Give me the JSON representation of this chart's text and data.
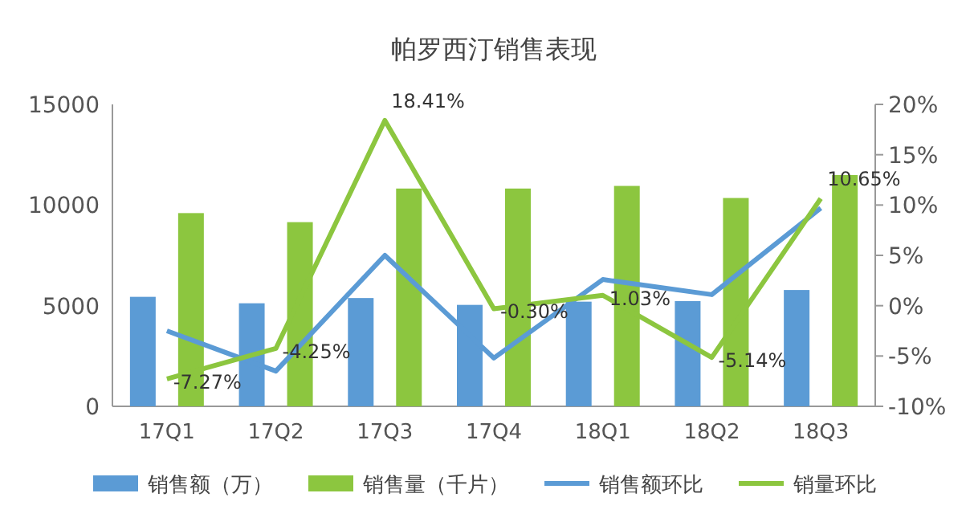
{
  "chart_data": {
    "type": "bar",
    "title": "帕罗西汀销售表现",
    "categories": [
      "17Q1",
      "17Q2",
      "17Q3",
      "17Q4",
      "18Q1",
      "18Q2",
      "18Q3"
    ],
    "series": [
      {
        "name": "销售额（万）",
        "color": "#5b9bd5",
        "values": [
          5440,
          5120,
          5380,
          5040,
          5200,
          5230,
          5780
        ]
      },
      {
        "name": "销售量（千片）",
        "color": "#8cc63f",
        "values": [
          9600,
          9150,
          10820,
          10820,
          10950,
          10350,
          11490
        ]
      },
      {
        "name": "销售额环比",
        "type": "line",
        "axis": "y2",
        "color": "#5b9bd5",
        "values": [
          -2.5,
          -6.5,
          5.0,
          -5.2,
          2.6,
          1.1,
          9.7
        ]
      },
      {
        "name": "销量环比",
        "type": "line",
        "axis": "y2",
        "color": "#8cc63f",
        "values": [
          -7.27,
          -4.25,
          18.41,
          -0.3,
          1.03,
          -5.14,
          10.65
        ],
        "value_labels": [
          "-7.27%",
          "-4.25%",
          "18.41%",
          "-0.30%",
          "1.03%",
          "-5.14%",
          "10.65%"
        ]
      }
    ],
    "ylim": [
      0,
      15000
    ],
    "yticks": [
      0,
      5000,
      10000,
      15000
    ],
    "y2lim": [
      -10,
      20
    ],
    "y2ticks": [
      {
        "value": -10,
        "label": "-10%"
      },
      {
        "value": -5,
        "label": "-5%"
      },
      {
        "value": 0,
        "label": "0%"
      },
      {
        "value": 5,
        "label": "5%"
      },
      {
        "value": 10,
        "label": "10%"
      },
      {
        "value": 15,
        "label": "15%"
      },
      {
        "value": 20,
        "label": "20%"
      }
    ],
    "grid": false,
    "legend": "bottom"
  }
}
